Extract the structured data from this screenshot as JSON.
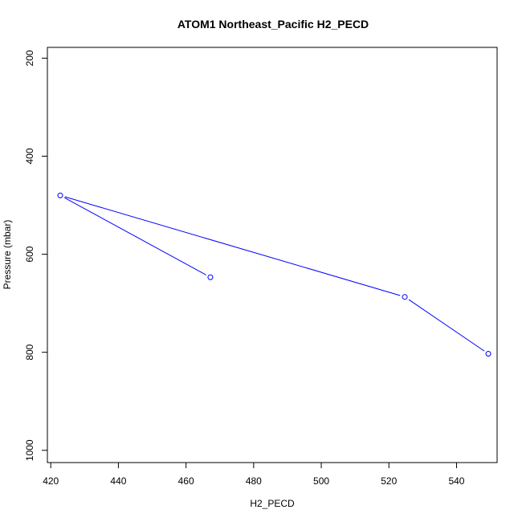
{
  "chart_data": {
    "type": "line",
    "title": "ATOM1 Northeast_Pacific H2_PECD",
    "xlabel": "H2_PECD",
    "ylabel": "Pressure (mbar)",
    "xlim": [
      419,
      552
    ],
    "ylim": [
      1025,
      178
    ],
    "y_reversed": true,
    "x_ticks": [
      420,
      440,
      460,
      480,
      500,
      520,
      540
    ],
    "y_ticks": [
      200,
      400,
      600,
      800,
      1000
    ],
    "grid": false,
    "legend": "none",
    "series": [
      {
        "color": "#0000ff",
        "markers": "open-circle",
        "points": [
          {
            "x": 467.2,
            "y": 647
          },
          {
            "x": 422.8,
            "y": 480
          },
          {
            "x": 524.7,
            "y": 687
          },
          {
            "x": 549.4,
            "y": 803
          }
        ]
      }
    ]
  }
}
